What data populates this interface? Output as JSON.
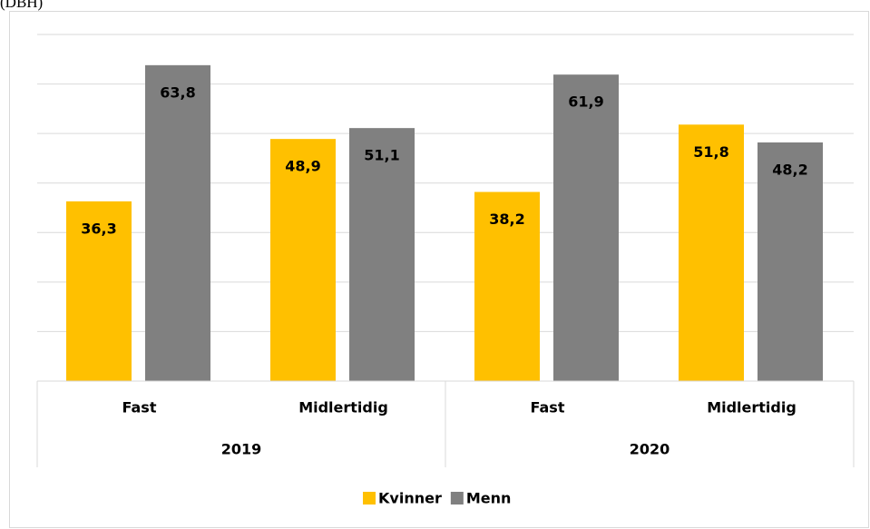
{
  "source": "(DBH)",
  "chart_data": {
    "type": "bar",
    "categories": [
      "Fast",
      "Midlertidig",
      "Fast",
      "Midlertidig"
    ],
    "group_labels": [
      "2019",
      "2020"
    ],
    "series": [
      {
        "name": "Kvinner",
        "color": "#ffc000",
        "values": [
          36.3,
          48.9,
          38.2,
          51.8
        ],
        "value_labels": [
          "36,3",
          "48,9",
          "38,2",
          "51,8"
        ]
      },
      {
        "name": "Menn",
        "color": "#808080",
        "values": [
          63.8,
          51.1,
          61.9,
          48.2
        ],
        "value_labels": [
          "63,8",
          "51,1",
          "61,9",
          "48,2"
        ]
      }
    ],
    "ylim": [
      0,
      70
    ],
    "yticks": [
      0,
      10,
      20,
      30,
      40,
      50,
      60,
      70
    ],
    "grid": true,
    "legend": "bottom"
  }
}
